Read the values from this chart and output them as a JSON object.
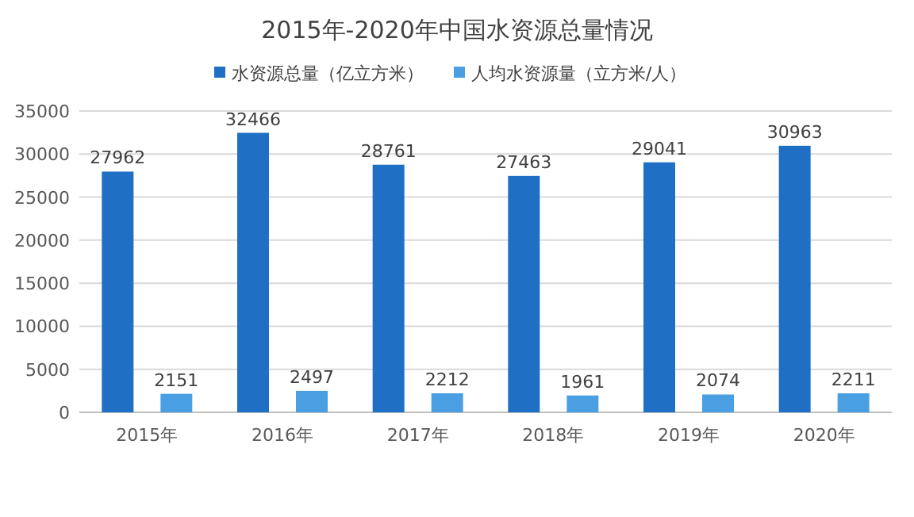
{
  "chart_data": {
    "type": "bar",
    "title": "2015年-2020年中国水资源总量情况",
    "categories": [
      "2015年",
      "2016年",
      "2017年",
      "2018年",
      "2019年",
      "2020年"
    ],
    "series": [
      {
        "name": "水资源总量（亿立方米）",
        "color": "#1f6fc5",
        "values": [
          27962,
          32466,
          28761,
          27463,
          29041,
          30963
        ]
      },
      {
        "name": "人均水资源量（立方米/人）",
        "color": "#4a9fe3",
        "values": [
          2151,
          2497,
          2212,
          1961,
          2074,
          2211
        ]
      }
    ],
    "ylim": [
      0,
      35000
    ],
    "yticks": [
      0,
      5000,
      10000,
      15000,
      20000,
      25000,
      30000,
      35000
    ],
    "grid": "y",
    "legend": "top",
    "data_labels": true
  }
}
